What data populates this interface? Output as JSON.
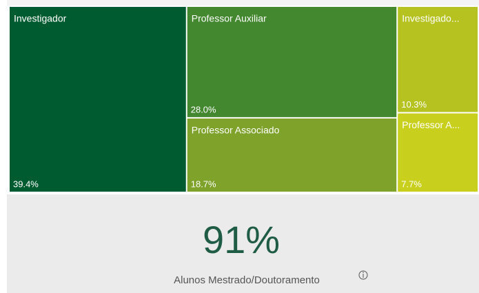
{
  "chart_data": {
    "type": "treemap",
    "categories": [
      "Investigador",
      "Professor Auxiliar",
      "Professor Associado",
      "Investigado...",
      "Professor A..."
    ],
    "values": [
      39.4,
      28.0,
      18.7,
      10.3,
      7.7
    ],
    "value_labels": [
      "39.4%",
      "28.0%",
      "18.7%",
      "10.3%",
      "7.7%"
    ],
    "colors": [
      "#005c30",
      "#43872f",
      "#7ea22a",
      "#b5c21f",
      "#c9cf1d"
    ]
  },
  "card": {
    "value": "91%",
    "label": "Alunos Mestrado/Doutoramento"
  }
}
